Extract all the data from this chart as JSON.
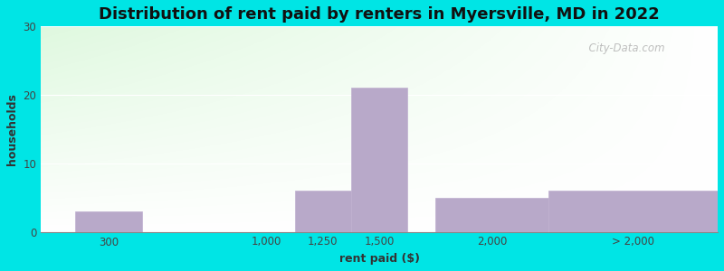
{
  "title": "Distribution of rent paid by renters in Myersville, MD in 2022",
  "xlabel": "rent paid ($)",
  "ylabel": "households",
  "bar_lefts": [
    150,
    1125,
    1375,
    1750,
    2250
  ],
  "bar_widths": [
    300,
    250,
    250,
    500,
    750
  ],
  "bar_heights": [
    3,
    6,
    21,
    5,
    6
  ],
  "bar_color": "#b8a9c9",
  "bar_edgecolor": "#c0b0d0",
  "xtick_positions": [
    300,
    1000,
    1250,
    1500,
    2000,
    2625
  ],
  "xtick_labels": [
    "300",
    "1,000",
    "1,250",
    "1,500",
    "2,000",
    "> 2,000"
  ],
  "xlim": [
    0,
    3000
  ],
  "ylim": [
    0,
    30
  ],
  "yticks": [
    0,
    10,
    20,
    30
  ],
  "background_outer": "#00e5e5",
  "title_fontsize": 13,
  "axis_label_fontsize": 9,
  "tick_fontsize": 8.5,
  "watermark": "  City-Data.com"
}
